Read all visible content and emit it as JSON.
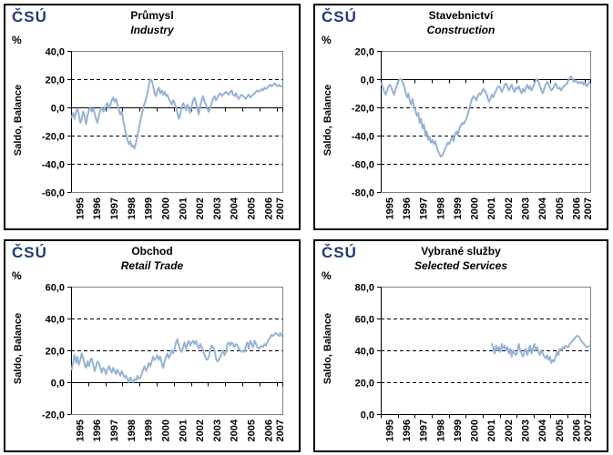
{
  "logo_text": "ČSÚ",
  "colors": {
    "line": "#95B3D7",
    "logo_navy": "#1F3B7A",
    "plot_border": "#808080",
    "grid": "#000000",
    "axis": "#000000",
    "text": "#000000"
  },
  "chart_data": [
    {
      "id": "industry",
      "type": "line",
      "title": "Průmysl",
      "subtitle": "Industry",
      "unit": "%",
      "ylabel": "Saldo, Balance",
      "ylim": [
        -60,
        40
      ],
      "y_tick_values": [
        40,
        20,
        0,
        -20,
        -40,
        -60
      ],
      "y_tick_labels": [
        "40,0",
        "20,0",
        "0,0",
        "-20,0",
        "-40,0",
        "-60,0"
      ],
      "x_range": [
        1995,
        2007.3333
      ],
      "x_tick_labels": [
        "1995",
        "1996",
        "1997",
        "1998",
        "1999",
        "2000",
        "2001",
        "2002",
        "2003",
        "2004",
        "2005",
        "2006",
        "2007"
      ],
      "grid": "dashed",
      "legend": "none",
      "series": [
        {
          "name": "Saldo, Balance",
          "x_start": 1995,
          "x_step": 0.083333,
          "values": [
            -7,
            -4,
            -8,
            -3,
            -1,
            -5,
            -11,
            -8,
            -3,
            -6,
            -12,
            -6,
            -2,
            0,
            -3,
            -1,
            -4,
            -8,
            -11,
            -6,
            -2,
            0,
            -3,
            -1,
            1,
            3,
            -1,
            2,
            5,
            7,
            4,
            6,
            2,
            -2,
            -5,
            -3,
            -9,
            -14,
            -19,
            -23,
            -26,
            -24,
            -28,
            -27,
            -29,
            -25,
            -20,
            -15,
            -10,
            -5,
            -1,
            3,
            6,
            10,
            16,
            20,
            19,
            15,
            10,
            8,
            12,
            14,
            10,
            12,
            9,
            11,
            8,
            9,
            6,
            4,
            2,
            5,
            3,
            0,
            -4,
            -8,
            -5,
            0,
            3,
            1,
            -2,
            2,
            -1,
            -4,
            1,
            5,
            7,
            3,
            -1,
            -5,
            1,
            5,
            8,
            4,
            2,
            -1,
            -3,
            0,
            3,
            6,
            8,
            5,
            7,
            9,
            10,
            8,
            9,
            10,
            11,
            10,
            9,
            11,
            12,
            9,
            8,
            10,
            7,
            6,
            8,
            9,
            8,
            7,
            6,
            8,
            9,
            7,
            8,
            9,
            10,
            11,
            12,
            11,
            12,
            13,
            12,
            14,
            13,
            14,
            15,
            16,
            15,
            16,
            17,
            16,
            15,
            16,
            15,
            15
          ]
        }
      ]
    },
    {
      "id": "construction",
      "type": "line",
      "title": "Stavebnictví",
      "subtitle": "Construction",
      "unit": "%",
      "ylabel": "Saldo, Balance",
      "ylim": [
        -80,
        20
      ],
      "y_tick_values": [
        20,
        0,
        -20,
        -40,
        -60,
        -80
      ],
      "y_tick_labels": [
        "20,0",
        "0,0",
        "-20,0",
        "-40,0",
        "-60,0",
        "-80,0"
      ],
      "x_range": [
        1995,
        2007.3333
      ],
      "x_tick_labels": [
        "1995",
        "1996",
        "1997",
        "1998",
        "1999",
        "2000",
        "2001",
        "2002",
        "2003",
        "2004",
        "2005",
        "2006",
        "2007"
      ],
      "grid": "dashed",
      "legend": "none",
      "series": [
        {
          "name": "Saldo, Balance",
          "x_start": 1995,
          "x_step": 0.083333,
          "values": [
            -3,
            -6,
            -9,
            -11,
            -8,
            -5,
            -4,
            -6,
            -9,
            -11,
            -7,
            -4,
            -1,
            0,
            0,
            -2,
            -5,
            -9,
            -13,
            -10,
            -15,
            -18,
            -14,
            -20,
            -22,
            -26,
            -24,
            -31,
            -28,
            -35,
            -32,
            -40,
            -37,
            -43,
            -41,
            -45,
            -43,
            -46,
            -44,
            -48,
            -51,
            -53,
            -55,
            -54,
            -52,
            -49,
            -47,
            -45,
            -46,
            -43,
            -41,
            -44,
            -39,
            -37,
            -40,
            -35,
            -33,
            -31,
            -32,
            -30,
            -28,
            -25,
            -21,
            -17,
            -14,
            -12,
            -13,
            -15,
            -12,
            -10,
            -11,
            -9,
            -7,
            -8,
            -10,
            -13,
            -16,
            -14,
            -11,
            -13,
            -10,
            -8,
            -6,
            -5,
            -6,
            -9,
            -7,
            -4,
            -3,
            -5,
            -8,
            -6,
            -4,
            -7,
            -9,
            -6,
            -7,
            -5,
            -8,
            -10,
            -7,
            -9,
            -6,
            -4,
            -7,
            -5,
            -8,
            -6,
            -3,
            -1,
            0,
            -2,
            -5,
            -8,
            -10,
            -7,
            -4,
            -2,
            -3,
            -6,
            -8,
            -7,
            -5,
            -3,
            -5,
            -7,
            -6,
            -8,
            -6,
            -5,
            -4,
            -3,
            -1,
            1,
            2,
            0,
            -2,
            -1,
            -2,
            -3,
            -2,
            -3,
            -2,
            -4,
            -3,
            -5,
            -4,
            -2
          ]
        }
      ]
    },
    {
      "id": "retail-trade",
      "type": "line",
      "title": "Obchod",
      "subtitle": "Retail Trade",
      "unit": "%",
      "ylabel": "Saldo, Balance",
      "ylim": [
        -20,
        60
      ],
      "y_tick_values": [
        60,
        40,
        20,
        0,
        -20
      ],
      "y_tick_labels": [
        "60,0",
        "40,0",
        "20,0",
        "0,0",
        "-20,0"
      ],
      "x_range": [
        1995,
        2007.3333
      ],
      "x_tick_labels": [
        "1995",
        "1996",
        "1997",
        "1998",
        "1999",
        "2000",
        "2001",
        "2002",
        "2003",
        "2004",
        "2005",
        "2006",
        "2007"
      ],
      "grid": "dashed",
      "legend": "none",
      "series": [
        {
          "name": "Saldo, Balance",
          "x_start": 1995,
          "x_step": 0.083333,
          "values": [
            8,
            13,
            17,
            12,
            16,
            11,
            14,
            18,
            15,
            11,
            9,
            13,
            10,
            14,
            15,
            11,
            7,
            10,
            13,
            12,
            9,
            6,
            9,
            8,
            5,
            8,
            10,
            8,
            6,
            9,
            7,
            5,
            8,
            6,
            4,
            7,
            5,
            3,
            4,
            2,
            0,
            3,
            1,
            0,
            2,
            1,
            4,
            2,
            3,
            5,
            8,
            10,
            7,
            9,
            12,
            10,
            13,
            16,
            14,
            15,
            17,
            14,
            16,
            12,
            9,
            13,
            16,
            18,
            15,
            17,
            20,
            18,
            21,
            25,
            27,
            23,
            20,
            19,
            22,
            25,
            21,
            24,
            26,
            23,
            25,
            26,
            24,
            26,
            23,
            21,
            24,
            22,
            20,
            17,
            15,
            14,
            16,
            20,
            23,
            22,
            20,
            15,
            13,
            14,
            16,
            18,
            20,
            17,
            19,
            24,
            25,
            23,
            25,
            24,
            22,
            24,
            23,
            21,
            20,
            19,
            20,
            19,
            23,
            25,
            21,
            26,
            24,
            22,
            26,
            24,
            22,
            21,
            22,
            23,
            22,
            24,
            23,
            25,
            27,
            28,
            30,
            29,
            30,
            31,
            30,
            29,
            31,
            29
          ]
        }
      ]
    },
    {
      "id": "selected-services",
      "type": "line",
      "title": "Vybrané služby",
      "subtitle": "Selected Services",
      "unit": "%",
      "ylabel": "Saldo, Balance",
      "ylim": [
        0,
        80
      ],
      "y_tick_values": [
        80,
        60,
        40,
        20,
        0
      ],
      "y_tick_labels": [
        "80,0",
        "60,0",
        "40,0",
        "20,0",
        "0,0"
      ],
      "x_range": [
        1995,
        2007.3333
      ],
      "x_tick_labels": [
        "1995",
        "1996",
        "1997",
        "1998",
        "1999",
        "2000",
        "2001",
        "2002",
        "2003",
        "2004",
        "2005",
        "2006",
        "2007"
      ],
      "grid": "dashed",
      "legend": "none",
      "series": [
        {
          "name": "Saldo, Balance",
          "x_start": 2001.5,
          "x_step": 0.083333,
          "values": [
            44,
            42,
            38,
            43,
            40,
            42,
            39,
            44,
            41,
            43,
            40,
            42,
            38,
            41,
            36,
            40,
            38,
            37,
            39,
            44,
            40,
            38,
            36,
            39,
            41,
            37,
            40,
            43,
            38,
            41,
            44,
            40,
            42,
            39,
            37,
            40,
            38,
            36,
            35,
            37,
            34,
            36,
            32,
            34,
            33,
            36,
            39,
            37,
            41,
            40,
            42,
            41,
            43,
            42,
            42,
            44,
            45,
            46,
            47,
            48,
            49,
            49,
            48,
            46,
            45,
            44,
            43,
            42,
            42,
            43
          ]
        }
      ]
    }
  ]
}
